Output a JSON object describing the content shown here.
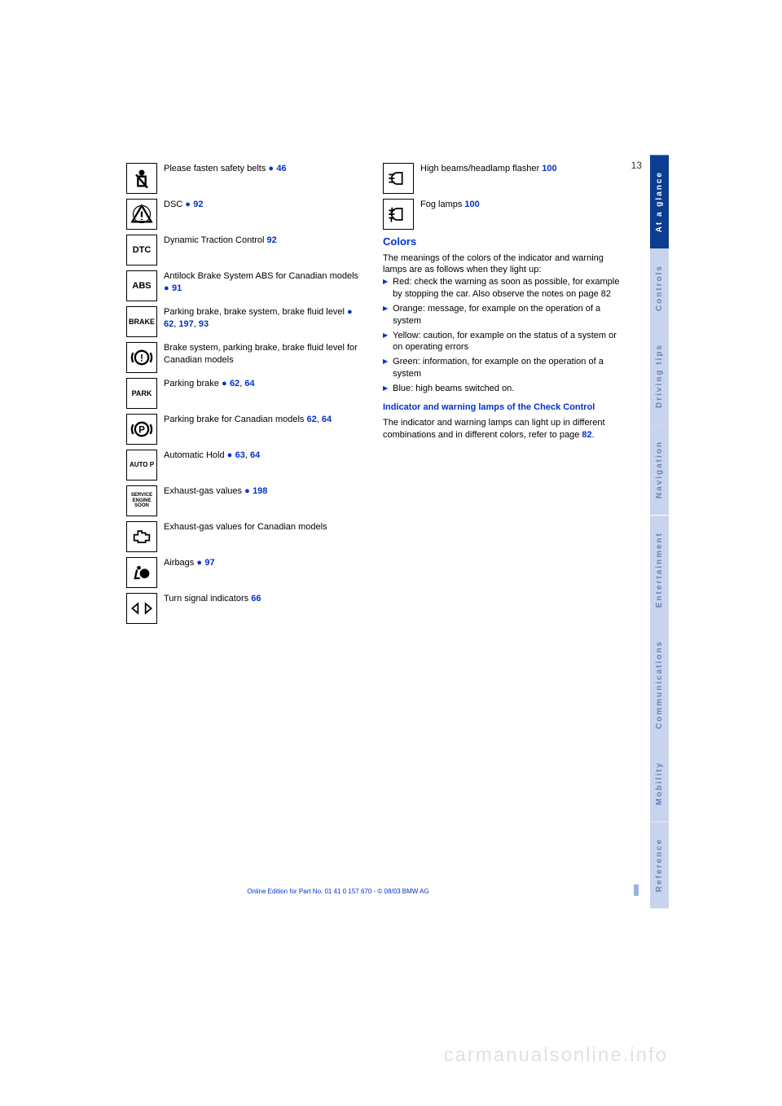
{
  "page_number": "13",
  "footer": "Online Edition for Part No. 01 41 0 157 670 - © 08/03 BMW AG",
  "watermark": "carmanualsonline.info",
  "tabs": [
    {
      "label": "At a glance",
      "active": true
    },
    {
      "label": "Controls",
      "active": false
    },
    {
      "label": "Driving tips",
      "active": false
    },
    {
      "label": "Navigation",
      "active": false
    },
    {
      "label": "Entertainment",
      "active": false
    },
    {
      "label": "Communications",
      "active": false
    },
    {
      "label": "Mobility",
      "active": false
    },
    {
      "label": "Reference",
      "active": false
    }
  ],
  "left_items": [
    {
      "icon": "seatbelt",
      "text": "Please fasten safety belts",
      "dot": true,
      "refs": [
        "46"
      ]
    },
    {
      "icon": "triangle-exclaim",
      "text": "DSC",
      "dot": true,
      "refs": [
        "92"
      ]
    },
    {
      "icon": "DTC",
      "text": "Dynamic Traction Control",
      "dot": false,
      "refs": [
        "92"
      ]
    },
    {
      "icon": "ABS",
      "text": "Antilock Brake System ABS for Canadian models",
      "dot": true,
      "refs": [
        "91"
      ]
    },
    {
      "icon": "BRAKE",
      "text": "Parking brake, brake system, brake fluid level",
      "dot": true,
      "refs": [
        "62",
        "197",
        "93"
      ]
    },
    {
      "icon": "brake-circle",
      "text": "Brake system, parking brake, brake fluid level for Canadian models",
      "dot": false,
      "refs": []
    },
    {
      "icon": "PARK",
      "text": "Parking brake",
      "dot": true,
      "refs": [
        "62",
        "64"
      ]
    },
    {
      "icon": "p-circle",
      "text": "Parking brake",
      "dot": false,
      "refs": [
        "62",
        "64"
      ],
      "suffix": " for Canadian models"
    },
    {
      "icon": "AUTO P",
      "text": "Automatic Hold",
      "dot": true,
      "refs": [
        "63",
        "64"
      ]
    },
    {
      "icon": "service-engine",
      "text": "Exhaust-gas values",
      "dot": true,
      "refs": [
        "198"
      ]
    },
    {
      "icon": "engine",
      "text": "Exhaust-gas values for Canadian models",
      "dot": false,
      "refs": []
    },
    {
      "icon": "airbag",
      "text": "Airbags",
      "dot": true,
      "refs": [
        "97"
      ]
    },
    {
      "icon": "turn-signals",
      "text": "Turn signal indicators",
      "dot": false,
      "refs": [
        "66"
      ]
    }
  ],
  "right_items": [
    {
      "icon": "high-beam",
      "text": "High beams/headlamp flasher",
      "dot": false,
      "refs": [
        "100"
      ]
    },
    {
      "icon": "fog",
      "text": "Fog lamps",
      "dot": false,
      "refs": [
        "100"
      ]
    }
  ],
  "colors_heading": "Colors",
  "colors_intro": "The meanings of the colors of the indicator and warning lamps are as follows when they light up:",
  "colors_list": [
    "Red: check the warning as soon as possible, for example by stopping the car. Also observe the notes on page 82",
    "Orange: message, for example on the operation of a system",
    "Yellow: caution, for example on the status of a system or on operating errors",
    "Green: information, for example on the operation of a system",
    "Blue: high beams switched on."
  ],
  "cc_heading": "Indicator and warning lamps of the Check Control",
  "cc_text_1": "The indicator and warning lamps can light up in different combinations and in different colors, refer to page",
  "cc_ref": "82",
  "cc_text_2": "."
}
